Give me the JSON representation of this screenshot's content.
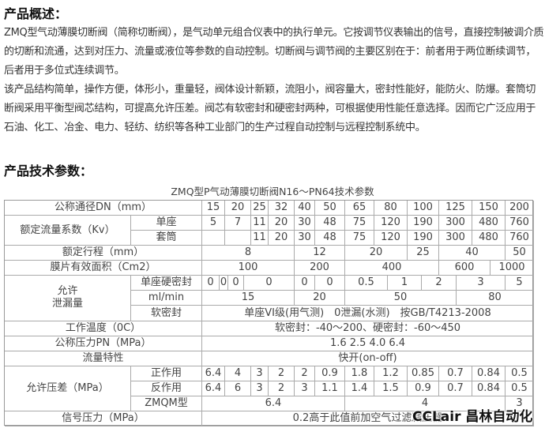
{
  "overview": {
    "heading": "产品概述：",
    "paragraph1": "ZMQ型气动薄膜切断阀（简称切断阀），是气动单元组合仪表中的执行单元。它按调节仪表输出的信号，直接控制被调介质的切断和流通，达到对压力、流量或液位等参数的自动控制。切断阀与调节阀的主要区别在于：前者用于两位断续调节，后者用于多位式连续调节。",
    "paragraph2": "该产品结构简单，操作方便，体形小，重量轻，阀体设计新颖，流阻小，阀容量大，密封性能好，能防火、防爆。套筒切断阀采用平衡型阀芯结构，可提高允许压差。阀芯有软密封和硬密封两种，可根据使用性能任意选择。因而它广泛应用于石油、化工、冶金、电力、轻纺、纺织等各种工业部门的生产过程自动控制与远程控制系统中。"
  },
  "specs": {
    "heading": "产品技术参数：",
    "table_title": "ZMQ型P气动薄膜切断阀N16～PN64技术参数",
    "dn": {
      "label": "公称通径DN（mm）",
      "values": [
        "15",
        "20",
        "25",
        "32",
        "40",
        "50",
        "65",
        "80",
        "100",
        "125",
        "150",
        "200"
      ]
    },
    "kv": {
      "label": "额定流量系数（Kv）",
      "single_label": "单座",
      "single": [
        "5",
        "7",
        "11",
        "20",
        "30",
        "48",
        "75",
        "120",
        "190",
        "300",
        "480",
        "760"
      ],
      "sleeve_label": "套筒",
      "sleeve": [
        "",
        "",
        "11",
        "20",
        "30",
        "48",
        "75",
        "120",
        "190",
        "300",
        "480",
        "760"
      ]
    },
    "stroke": {
      "label": "额定行程（mm）",
      "values": [
        "8",
        "12",
        "20",
        "25",
        "40",
        "50"
      ]
    },
    "area": {
      "label": "膜片有效面积（Cm2）",
      "values": [
        "100",
        "200",
        "400",
        "600",
        "1000"
      ]
    },
    "leakage": {
      "label_line1": "允许",
      "label_line2": "泄漏量",
      "hard_label": "单座硬密封",
      "hard_values": [
        "0",
        "0",
        "0",
        "0",
        "0",
        "0",
        "0.5",
        "1",
        "2",
        "3",
        "5"
      ],
      "unit_label": "ml/min",
      "unit_values": [
        "15",
        "20",
        "50",
        "80"
      ],
      "soft_label": "软密封",
      "soft_value": "单座VI级(用气测)　0泄漏(水测)　按GB/T4213-2008"
    },
    "temperature": {
      "label": "工作温度（0C）",
      "value": "软密封：-40～200、硬密封：-60～450"
    },
    "pressure": {
      "label": "公称压力PN（MPa）",
      "value": "1.6  2.5 4.0   6.4"
    },
    "flow": {
      "label": "流量特性",
      "value": "快开(on-off)"
    },
    "dp": {
      "label": "允许压差（MPa）",
      "forward_label": "正作用",
      "forward": [
        "6.4",
        "4",
        "3",
        "2",
        "2",
        "0.9",
        "1.8",
        "1.2",
        "0.85",
        "0.7",
        "0.84",
        "0.5"
      ],
      "reverse_label": "反作用",
      "reverse": [
        "6.4",
        "6",
        "3",
        "2",
        "3",
        "1.1",
        "1.4",
        "1.5",
        "0.9",
        "0.7",
        "0.84",
        "0.5"
      ],
      "zmqm_label": "ZMQM型",
      "zmqm": [
        "6.4",
        "4",
        "3"
      ]
    },
    "signal": {
      "label": "信号压力（MPa）",
      "value": "0.2高于此值前加空气过滤减压器"
    }
  },
  "watermark": "CCLair 昌林自动化"
}
